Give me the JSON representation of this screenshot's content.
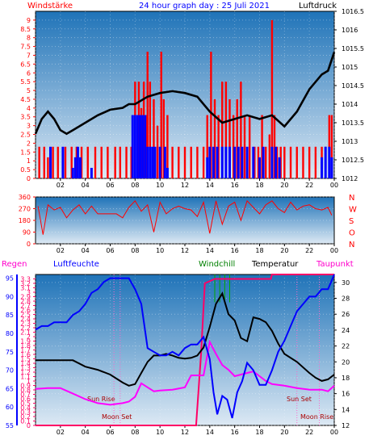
{
  "chart_data": [
    {
      "type": "line",
      "panel": "wind",
      "title": "24 hour graph day : 25 Juli 2021",
      "left_label": "Windstärke",
      "right_label": "Luftdruck",
      "x_ticks": [
        "02",
        "04",
        "06",
        "08",
        "10",
        "12",
        "14",
        "16",
        "18",
        "20",
        "22",
        "00"
      ],
      "x_range_hours": [
        0,
        24
      ],
      "y_left_ticks": [
        "0",
        "0.5",
        "1",
        "1.5",
        "2",
        "2.5",
        "3",
        "3.5",
        "4",
        "4.5",
        "5",
        "5.5",
        "6",
        "6.5",
        "7",
        "7.5",
        "8",
        "8.5",
        "9"
      ],
      "y_left_range": [
        0,
        9.5
      ],
      "y_right_ticks": [
        "1012",
        "1012.5",
        "1013",
        "1013.5",
        "1014",
        "1014.5",
        "1015",
        "1015.5",
        "1016",
        "1016.5"
      ],
      "y_right_range": [
        1012,
        1016.5
      ],
      "colors": {
        "gust": "#ff0000",
        "wind": "#0000ff",
        "pressure": "#000000",
        "bg_top": "#1f73b8",
        "bg_bottom": "#dde9f4"
      },
      "series": [
        {
          "key": "pressure",
          "x": [
            0,
            0.5,
            1,
            1.5,
            2,
            2.5,
            3,
            3.5,
            4,
            5,
            6,
            7,
            7.5,
            8,
            9,
            10,
            11,
            12,
            13,
            14,
            15,
            16,
            17,
            18,
            19,
            20,
            21,
            22,
            23,
            23.5,
            24
          ],
          "values": [
            1013.2,
            1013.6,
            1013.8,
            1013.6,
            1013.3,
            1013.2,
            1013.3,
            1013.4,
            1013.5,
            1013.7,
            1013.85,
            1013.9,
            1014.0,
            1014.0,
            1014.2,
            1014.3,
            1014.35,
            1014.3,
            1014.2,
            1013.8,
            1013.5,
            1013.6,
            1013.7,
            1013.6,
            1013.7,
            1013.4,
            1013.8,
            1014.4,
            1014.8,
            1014.9,
            1015.4
          ]
        },
        {
          "key": "wind_bars",
          "x": [
            1.2,
            2.2,
            3.0,
            3.2,
            3.4,
            3.6,
            4.5,
            7.8,
            8.0,
            8.2,
            8.4,
            8.6,
            8.8,
            9.0,
            9.2,
            9.4,
            9.6,
            10.0,
            10.4,
            10.6,
            13.8,
            14.0,
            14.3,
            14.6,
            15.0,
            15.3,
            15.6,
            16.0,
            16.3,
            16.6,
            17.0,
            17.5,
            18.0,
            18.3,
            19.0,
            19.3,
            19.6,
            23.0,
            23.3,
            23.6,
            23.8
          ],
          "values": [
            1.8,
            1.8,
            0.6,
            1.2,
            1.8,
            1.2,
            0.6,
            3.6,
            3.6,
            3.6,
            3.6,
            3.6,
            3.6,
            1.8,
            1.8,
            1.8,
            1.8,
            1.8,
            1.8,
            0.6,
            1.2,
            1.8,
            1.8,
            1.8,
            1.8,
            1.8,
            1.8,
            1.8,
            1.8,
            1.8,
            1.8,
            1.8,
            1.2,
            1.8,
            1.8,
            1.8,
            1.2,
            1.2,
            1.8,
            1.8,
            1.2
          ]
        },
        {
          "key": "gust_bars",
          "x": [
            0.3,
            0.7,
            1.0,
            1.4,
            1.8,
            2.4,
            2.9,
            3.3,
            3.7,
            4.2,
            4.8,
            5.3,
            5.8,
            6.4,
            6.8,
            7.3,
            7.7,
            8.0,
            8.3,
            8.5,
            8.7,
            8.9,
            9.0,
            9.2,
            9.5,
            9.8,
            10.1,
            10.3,
            10.6,
            11.0,
            11.5,
            12.0,
            12.5,
            13.0,
            13.5,
            13.8,
            14.1,
            14.4,
            14.7,
            15.0,
            15.3,
            15.6,
            15.9,
            16.2,
            16.5,
            16.8,
            17.2,
            17.6,
            17.9,
            18.2,
            18.5,
            18.8,
            19.0,
            19.2,
            19.4,
            19.7,
            20.0,
            20.5,
            21.0,
            21.5,
            22.0,
            22.5,
            23.0,
            23.3,
            23.6,
            23.8
          ],
          "values": [
            1.8,
            1.8,
            1.2,
            1.8,
            1.8,
            1.8,
            1.8,
            1.8,
            1.8,
            1.8,
            1.8,
            1.8,
            1.8,
            1.8,
            1.8,
            1.8,
            1.8,
            5.5,
            5.5,
            4.0,
            5.5,
            3.6,
            7.2,
            5.5,
            4.5,
            3.0,
            7.2,
            4.5,
            3.6,
            1.8,
            1.8,
            1.8,
            1.8,
            1.8,
            1.8,
            3.6,
            7.2,
            4.5,
            3.6,
            5.5,
            5.5,
            4.5,
            3.6,
            4.5,
            5.5,
            3.6,
            3.6,
            1.8,
            1.8,
            3.6,
            1.8,
            2.5,
            9.0,
            3.6,
            1.8,
            1.8,
            1.8,
            1.8,
            1.8,
            1.8,
            1.8,
            1.8,
            1.8,
            1.8,
            3.6,
            3.6
          ]
        }
      ]
    },
    {
      "type": "line",
      "panel": "direction",
      "y_left_ticks": [
        "0",
        "90",
        "180",
        "270",
        "360"
      ],
      "y_left_range": [
        0,
        360
      ],
      "compass_labels": [
        "N",
        "W",
        "S",
        "O",
        "N"
      ],
      "colors": {
        "direction": "#ff0000"
      },
      "series": [
        {
          "key": "direction",
          "x": [
            0.2,
            0.6,
            1.0,
            1.5,
            2.0,
            2.5,
            3.0,
            3.5,
            4.0,
            4.5,
            5.0,
            5.5,
            6.0,
            6.5,
            7.0,
            7.5,
            8.0,
            8.5,
            9.0,
            9.5,
            10.0,
            10.5,
            11.0,
            11.5,
            12.0,
            12.5,
            13.0,
            13.5,
            14.0,
            14.5,
            15.0,
            15.5,
            16.0,
            16.5,
            17.0,
            17.5,
            18.0,
            18.5,
            19.0,
            19.5,
            20.0,
            20.5,
            21.0,
            21.5,
            22.0,
            22.5,
            23.0,
            23.5,
            23.8
          ],
          "values": [
            290,
            70,
            300,
            260,
            280,
            200,
            260,
            300,
            230,
            290,
            230,
            230,
            230,
            230,
            200,
            280,
            330,
            250,
            300,
            90,
            320,
            230,
            270,
            290,
            270,
            260,
            210,
            320,
            80,
            330,
            150,
            290,
            320,
            180,
            330,
            280,
            230,
            300,
            330,
            270,
            240,
            320,
            260,
            290,
            300,
            270,
            260,
            280,
            220
          ]
        }
      ]
    },
    {
      "type": "line",
      "panel": "temp",
      "labels": {
        "regen": "Regen",
        "luftfeuchte": "Luftfeuchte",
        "windchill": "Windchill",
        "temperatur": "Temperatur",
        "taupunkt": "Taupunkt"
      },
      "y_rain_ticks": [
        "0",
        "0.1",
        "0.2",
        "0.3",
        "0.4",
        "0.5",
        "0.6",
        "0.7",
        "0.8",
        "0.9",
        "1",
        "1.1",
        "1.2",
        "1.3",
        "1.4",
        "1.5",
        "1.6",
        "1.7",
        "1.8",
        "1.9",
        "2",
        "2.1",
        "2.2",
        "2.3",
        "2.4",
        "2.5",
        "2.6",
        "2.7",
        "2.8",
        "2.9",
        "3",
        "3.1",
        "3.2",
        "3.3"
      ],
      "y_rain_range": [
        0,
        3.4
      ],
      "y_hum_ticks": [
        "55",
        "60",
        "65",
        "70",
        "75",
        "80",
        "85",
        "90",
        "95"
      ],
      "y_hum_range": [
        55,
        96
      ],
      "y_temp_ticks": [
        "12",
        "14",
        "16",
        "18",
        "20",
        "22",
        "24",
        "26",
        "28",
        "30"
      ],
      "y_temp_range": [
        12,
        31
      ],
      "annotations": {
        "sun_rise": "Sun Rise",
        "moon_set": "Moon Set",
        "sun_set": "Sun Set",
        "moon_rise": "Moon Rise"
      },
      "colors": {
        "rain": "#ff0066",
        "humidity": "#0000ff",
        "temperature": "#000000",
        "dewpoint": "#ff00ff",
        "windchill": "#008000",
        "bg_top": "#1f73b8",
        "bg_bottom": "#dde9f4"
      },
      "series": [
        {
          "key": "rain",
          "x": [
            0,
            12.9,
            13.0,
            13.3,
            13.6,
            14.0,
            14.4,
            15.0,
            17.0,
            18.9,
            19.0,
            21.0,
            23.0,
            24
          ],
          "values": [
            0,
            0,
            0.4,
            1.6,
            3.2,
            3.25,
            3.3,
            3.3,
            3.3,
            3.3,
            3.4,
            3.4,
            3.4,
            3.4
          ]
        },
        {
          "key": "humidity",
          "x": [
            0,
            0.5,
            1,
            1.5,
            2,
            2.5,
            3,
            3.5,
            4,
            4.5,
            5,
            5.5,
            6,
            6.5,
            7,
            7.5,
            8,
            8.5,
            9,
            9.5,
            10,
            10.5,
            11,
            11.5,
            12,
            12.5,
            13,
            13.5,
            14,
            14.3,
            14.6,
            15.0,
            15.4,
            15.8,
            16.2,
            16.6,
            17,
            17.5,
            18,
            18.5,
            19,
            19.5,
            20,
            20.5,
            21,
            21.5,
            22,
            22.5,
            23,
            23.5,
            24
          ],
          "values": [
            81,
            82,
            82,
            83,
            83,
            83,
            85,
            86,
            88,
            91,
            92,
            94,
            95,
            95,
            95,
            95,
            92,
            88,
            76,
            75,
            74,
            74,
            75,
            74,
            76,
            77,
            77,
            79,
            73,
            64,
            58,
            63,
            62,
            57,
            64,
            67,
            72,
            70,
            66,
            66,
            70,
            75,
            78,
            82,
            86,
            88,
            90,
            90,
            92,
            92,
            96
          ]
        },
        {
          "key": "temperature",
          "x": [
            0,
            1,
            2,
            3,
            4,
            5,
            6,
            7,
            7.5,
            8,
            8.5,
            9,
            9.5,
            10,
            10.5,
            11,
            11.5,
            12,
            12.5,
            13,
            13.5,
            14,
            14.5,
            15,
            15.5,
            16,
            16.5,
            17,
            17.5,
            18,
            18.5,
            19,
            19.5,
            20,
            21,
            22,
            22.5,
            23,
            23.5,
            24
          ],
          "values": [
            20.2,
            20.2,
            20.2,
            20.2,
            19.4,
            19.0,
            18.4,
            17.4,
            17.0,
            17.2,
            18.6,
            20.0,
            20.8,
            20.8,
            21.0,
            20.8,
            20.5,
            20.4,
            20.5,
            20.8,
            21.8,
            24.4,
            27.3,
            28.6,
            26.0,
            25.2,
            23.0,
            22.6,
            25.6,
            25.4,
            25.0,
            23.9,
            22.3,
            21.0,
            20.0,
            18.6,
            18.0,
            17.6,
            17.8,
            18.4
          ]
        },
        {
          "key": "dewpoint",
          "x": [
            0,
            1,
            2,
            3,
            4,
            5,
            6,
            7,
            7.5,
            8,
            8.5,
            9,
            9.5,
            10,
            11,
            12,
            12.5,
            13,
            13.5,
            14,
            14.5,
            15,
            15.5,
            16,
            16.5,
            17,
            17.5,
            18,
            18.5,
            19,
            20,
            21,
            22,
            23,
            23.5,
            24
          ],
          "values": [
            16.6,
            16.7,
            16.7,
            16.0,
            15.3,
            14.8,
            14.6,
            14.8,
            15.0,
            15.6,
            17.3,
            16.8,
            16.3,
            16.4,
            16.5,
            16.8,
            18.3,
            18.3,
            18.3,
            22.5,
            21.0,
            19.6,
            19.0,
            18.2,
            18.4,
            18.6,
            18.8,
            18.2,
            17.6,
            17.2,
            17.0,
            16.7,
            16.5,
            16.5,
            16.3,
            17.0
          ]
        }
      ]
    }
  ]
}
